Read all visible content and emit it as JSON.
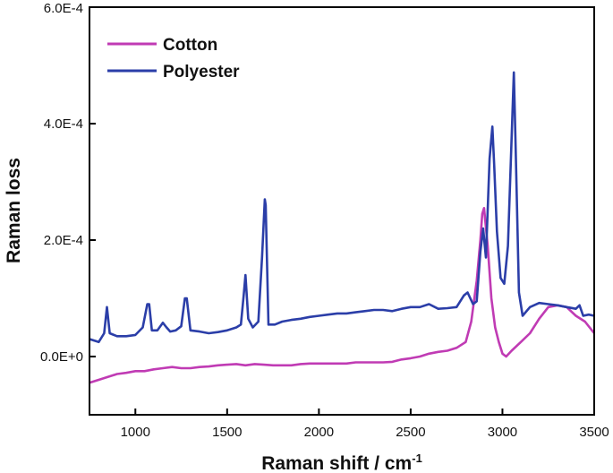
{
  "chart_data": {
    "type": "line",
    "xlabel": "Raman shift  / cm",
    "xlabel_sup": "-1",
    "ylabel": "Raman loss",
    "xlim": [
      750,
      3500
    ],
    "ylim": [
      -0.0001,
      0.0006
    ],
    "x_ticks": [
      1000,
      1500,
      2000,
      2500,
      3000,
      3500
    ],
    "x_tick_labels": [
      "1000",
      "1500",
      "2000",
      "2500",
      "3000",
      "3500"
    ],
    "y_ticks": [
      0,
      0.0002,
      0.0004,
      0.0006
    ],
    "y_tick_labels": [
      "0.0E+0",
      "2.0E-4",
      "4.0E-4",
      "6.0E-4"
    ],
    "grid": false,
    "legend_position": "top-left",
    "series": [
      {
        "name": "Cotton",
        "color": "#c03bb4",
        "x": [
          750,
          800,
          850,
          900,
          950,
          1000,
          1050,
          1100,
          1150,
          1200,
          1250,
          1300,
          1350,
          1400,
          1450,
          1500,
          1550,
          1600,
          1650,
          1700,
          1750,
          1800,
          1850,
          1900,
          1950,
          2000,
          2050,
          2100,
          2150,
          2200,
          2250,
          2300,
          2350,
          2400,
          2450,
          2500,
          2550,
          2600,
          2650,
          2700,
          2750,
          2800,
          2830,
          2860,
          2880,
          2890,
          2900,
          2920,
          2940,
          2960,
          2980,
          3000,
          3020,
          3050,
          3100,
          3150,
          3200,
          3250,
          3300,
          3350,
          3400,
          3450,
          3500
        ],
        "y": [
          -4.5e-05,
          -4e-05,
          -3.5e-05,
          -3e-05,
          -2.8e-05,
          -2.5e-05,
          -2.5e-05,
          -2.2e-05,
          -2e-05,
          -1.8e-05,
          -2e-05,
          -2e-05,
          -1.8e-05,
          -1.7e-05,
          -1.5e-05,
          -1.4e-05,
          -1.3e-05,
          -1.5e-05,
          -1.3e-05,
          -1.4e-05,
          -1.5e-05,
          -1.5e-05,
          -1.5e-05,
          -1.3e-05,
          -1.2e-05,
          -1.2e-05,
          -1.2e-05,
          -1.2e-05,
          -1.2e-05,
          -1e-05,
          -1e-05,
          -1e-05,
          -1e-05,
          -9e-06,
          -5e-06,
          -3e-06,
          0,
          5e-06,
          8e-06,
          1e-05,
          1.5e-05,
          2.5e-05,
          6e-05,
          0.00013,
          0.0002,
          0.000245,
          0.000255,
          0.00019,
          0.0001,
          5e-05,
          2.5e-05,
          5e-06,
          0,
          1e-05,
          2.5e-05,
          4e-05,
          6.5e-05,
          8.5e-05,
          8.8e-05,
          8.5e-05,
          7e-05,
          6e-05,
          4e-05
        ]
      },
      {
        "name": "Polyester",
        "color": "#2b3ea8",
        "x": [
          750,
          800,
          830,
          845,
          860,
          900,
          950,
          1000,
          1040,
          1065,
          1075,
          1090,
          1120,
          1150,
          1170,
          1190,
          1220,
          1250,
          1270,
          1280,
          1300,
          1350,
          1400,
          1450,
          1500,
          1550,
          1575,
          1590,
          1600,
          1615,
          1640,
          1670,
          1690,
          1705,
          1710,
          1725,
          1760,
          1800,
          1850,
          1900,
          1950,
          2000,
          2050,
          2100,
          2150,
          2200,
          2250,
          2300,
          2350,
          2400,
          2450,
          2500,
          2550,
          2600,
          2650,
          2700,
          2750,
          2790,
          2810,
          2840,
          2860,
          2880,
          2895,
          2910,
          2930,
          2945,
          2955,
          2970,
          2990,
          3010,
          3030,
          3050,
          3062,
          3072,
          3090,
          3110,
          3150,
          3200,
          3250,
          3300,
          3350,
          3400,
          3420,
          3440,
          3470,
          3500
        ],
        "y": [
          3e-05,
          2.5e-05,
          4e-05,
          8.5e-05,
          4e-05,
          3.5e-05,
          3.5e-05,
          3.7e-05,
          5e-05,
          9e-05,
          9e-05,
          4.5e-05,
          4.5e-05,
          5.8e-05,
          5e-05,
          4.3e-05,
          4.5e-05,
          5.2e-05,
          0.0001,
          0.0001,
          4.5e-05,
          4.3e-05,
          4e-05,
          4.2e-05,
          4.5e-05,
          5e-05,
          5.5e-05,
          0.000105,
          0.00014,
          6.5e-05,
          5e-05,
          6e-05,
          0.00017,
          0.00027,
          0.00026,
          5.5e-05,
          5.5e-05,
          6e-05,
          6.3e-05,
          6.5e-05,
          6.8e-05,
          7e-05,
          7.2e-05,
          7.4e-05,
          7.4e-05,
          7.6e-05,
          7.8e-05,
          8e-05,
          8e-05,
          7.8e-05,
          8.2e-05,
          8.5e-05,
          8.5e-05,
          9e-05,
          8.2e-05,
          8.3e-05,
          8.5e-05,
          0.000105,
          0.00011,
          9e-05,
          9.5e-05,
          0.00018,
          0.00022,
          0.00017,
          0.00034,
          0.000395,
          0.00033,
          0.000215,
          0.000135,
          0.000125,
          0.00019,
          0.000375,
          0.000488,
          0.00036,
          0.00011,
          7e-05,
          8.5e-05,
          9.2e-05,
          9e-05,
          8.8e-05,
          8.5e-05,
          8.2e-05,
          8.8e-05,
          7e-05,
          7.2e-05,
          7e-05
        ]
      }
    ]
  }
}
